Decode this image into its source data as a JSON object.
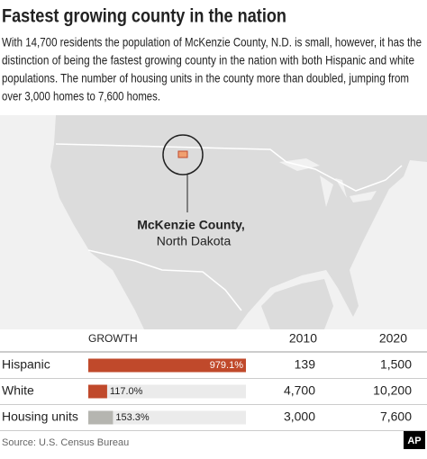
{
  "header": {
    "title": "Fastest growing county in the nation",
    "description": [
      "With 14,700 residents the population of McKenzie County, N.D. is small, however, it has the",
      "distinction of being the fastest growing county in the nation with both Hispanic and white",
      "populations. The number of housing units in the county more than doubled, jumping from",
      "over 3,000 homes to 7,600 homes."
    ]
  },
  "map": {
    "callout": {
      "county": "McKenzie County,",
      "state": "North Dakota"
    }
  },
  "table": {
    "columns": [
      "GROWTH",
      "2010",
      "2020"
    ],
    "rows": [
      {
        "label": "Hispanic",
        "growth": 979.1,
        "growth_label": "979.1%",
        "color": "#c0492b",
        "y2010": "139",
        "y2020": "1,500"
      },
      {
        "label": "White",
        "growth": 117.0,
        "growth_label": "117.0%",
        "color": "#c0492b",
        "y2010": "4,700",
        "y2020": "10,200"
      },
      {
        "label": "Housing units",
        "growth": 153.3,
        "growth_label": "153.3%",
        "color": "#b5b5b0",
        "y2010": "3,000",
        "y2020": "7,600"
      }
    ]
  },
  "footer": {
    "source": "Source: U.S. Census Bureau",
    "logo": "AP"
  }
}
